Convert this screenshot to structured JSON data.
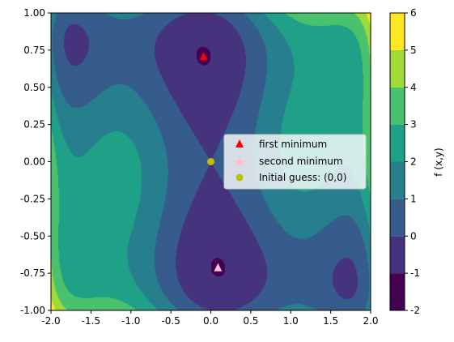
{
  "chart_data": {
    "type": "contourf",
    "function_label": "f (x,y)",
    "xlim": [
      -2.0,
      2.0
    ],
    "ylim": [
      -1.0,
      1.0
    ],
    "x_ticks": [
      "-2.0",
      "-1.5",
      "-1.0",
      "-0.5",
      "0.0",
      "0.5",
      "1.0",
      "1.5",
      "2.0"
    ],
    "y_ticks": [
      "-1.00",
      "-0.75",
      "-0.50",
      "-0.25",
      "0.00",
      "0.25",
      "0.50",
      "0.75",
      "1.00"
    ],
    "levels": [
      -2,
      -1,
      0,
      1,
      2,
      3,
      4,
      5,
      6
    ],
    "level_colors": [
      "#440154",
      "#46337e",
      "#365c8d",
      "#277f8e",
      "#1fa187",
      "#4ac16d",
      "#a0da39",
      "#fde725"
    ],
    "colorbar_labels": [
      "-2",
      "-1",
      "0",
      "1",
      "2",
      "3",
      "4",
      "5",
      "6"
    ],
    "colorbar_label": "f (x,y)",
    "markers": [
      {
        "name": "first minimum",
        "x": -0.09,
        "y": 0.71,
        "marker": "triangle",
        "color": "#ff0000"
      },
      {
        "name": "second minimum",
        "x": 0.09,
        "y": -0.71,
        "marker": "triangle",
        "color": "#ffc0cb"
      },
      {
        "name": "Initial guess: (0,0)",
        "x": 0.0,
        "y": 0.0,
        "marker": "circle",
        "color": "#bfbf00"
      }
    ],
    "legend_position": "center-right"
  }
}
